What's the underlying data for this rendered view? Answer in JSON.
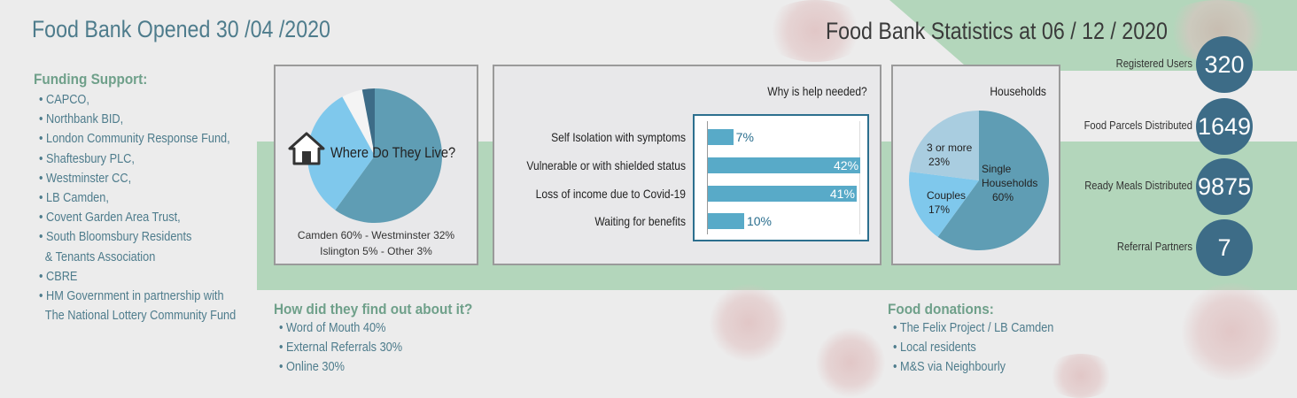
{
  "title_opened": "Food Bank Opened 30 /04 /2020",
  "title_stats": "Food Bank Statistics at 06 / 12 / 2020",
  "funding": {
    "heading": "Funding Support:",
    "items": [
      "CAPCO,",
      "Northbank BID,",
      "London Community Response Fund,",
      "Shaftesbury PLC,",
      "Westminster CC,",
      "LB Camden,",
      "Covent Garden Area Trust,",
      "South Bloomsbury Residents",
      "& Tenants Association",
      "CBRE",
      "HM Government in partnership with",
      "The National Lottery Community Fund"
    ]
  },
  "where": {
    "title": "Where Do They Live?",
    "caption_1": "Camden 60% - Westminster 32%",
    "caption_2": "Islington 5% - Other 3%",
    "slices": [
      {
        "name": "Camden",
        "value": 60,
        "color": "#5f9db4"
      },
      {
        "name": "Westminster",
        "value": 32,
        "color": "#7fc8ec"
      },
      {
        "name": "Islington",
        "value": 5,
        "color": "#f4f4f4"
      },
      {
        "name": "Other",
        "value": 3,
        "color": "#3d6c87"
      }
    ]
  },
  "why": {
    "title": "Why is help needed?",
    "bars": [
      {
        "label": "Self Isolation with symptoms",
        "value": 7,
        "display": "7%"
      },
      {
        "label": "Vulnerable or with shielded status",
        "value": 42,
        "display": "42%"
      },
      {
        "label": "Loss of income due to Covid-19",
        "value": 41,
        "display": "41%"
      },
      {
        "label": "Waiting for benefits",
        "value": 10,
        "display": "10%"
      }
    ]
  },
  "households": {
    "title": "Households",
    "single_1": "Single",
    "single_2": "Households",
    "single_pct": "60%",
    "couples": "Couples",
    "couples_pct": "17%",
    "three_1": "3 or more",
    "three_pct": "23%",
    "slices": [
      {
        "name": "Single Households",
        "value": 60,
        "color": "#5f9db4"
      },
      {
        "name": "Couples",
        "value": 17,
        "color": "#7fc8ec"
      },
      {
        "name": "3 or more",
        "value": 23,
        "color": "#a9cde0"
      }
    ]
  },
  "stats": [
    {
      "label": "Registered Users",
      "value": "320"
    },
    {
      "label": "Food Parcels Distributed",
      "value": "1649"
    },
    {
      "label": "Ready Meals Distributed",
      "value": "9875"
    },
    {
      "label": "Referral Partners",
      "value": "7"
    }
  ],
  "find_out": {
    "heading": "How did they find out about it?",
    "items": [
      "Word of Mouth 40%",
      "External Referrals 30%",
      "Online 30%"
    ]
  },
  "donations": {
    "heading": "Food donations:",
    "items": [
      "The Felix Project / LB Camden",
      "Local residents",
      "M&S via Neighbourly"
    ]
  }
}
